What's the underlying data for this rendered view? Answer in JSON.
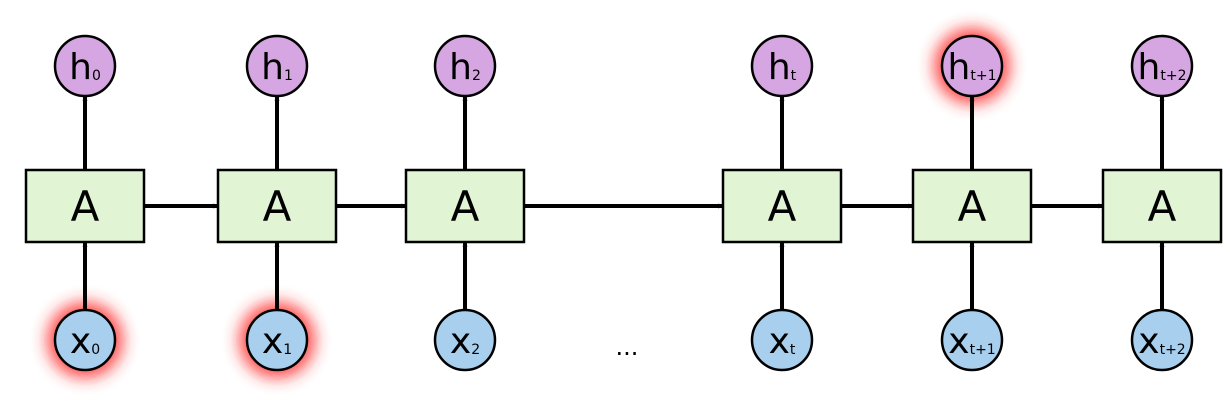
{
  "colors": {
    "cell_fill": "#e1f4d3",
    "output_fill": "#d6a6e3",
    "input_fill": "#a8d0ee",
    "stroke": "#000000",
    "highlight": "#ff2a2a"
  },
  "cells": [
    {
      "label": "A",
      "output": {
        "base": "h",
        "sub": "0",
        "highlight": false
      },
      "input": {
        "base": "x",
        "sub": "0",
        "highlight": true
      }
    },
    {
      "label": "A",
      "output": {
        "base": "h",
        "sub": "1",
        "highlight": false
      },
      "input": {
        "base": "x",
        "sub": "1",
        "highlight": true
      }
    },
    {
      "label": "A",
      "output": {
        "base": "h",
        "sub": "2",
        "highlight": false
      },
      "input": {
        "base": "x",
        "sub": "2",
        "highlight": false
      }
    },
    {
      "label": "A",
      "output": {
        "base": "h",
        "sub": "t",
        "highlight": false
      },
      "input": {
        "base": "x",
        "sub": "t",
        "highlight": false
      }
    },
    {
      "label": "A",
      "output": {
        "base": "h",
        "sub": "t+1",
        "highlight": true
      },
      "input": {
        "base": "x",
        "sub": "t+1",
        "highlight": false
      }
    },
    {
      "label": "A",
      "output": {
        "base": "h",
        "sub": "t+2",
        "highlight": false
      },
      "input": {
        "base": "x",
        "sub": "t+2",
        "highlight": false
      }
    }
  ],
  "ellipsis": "..."
}
